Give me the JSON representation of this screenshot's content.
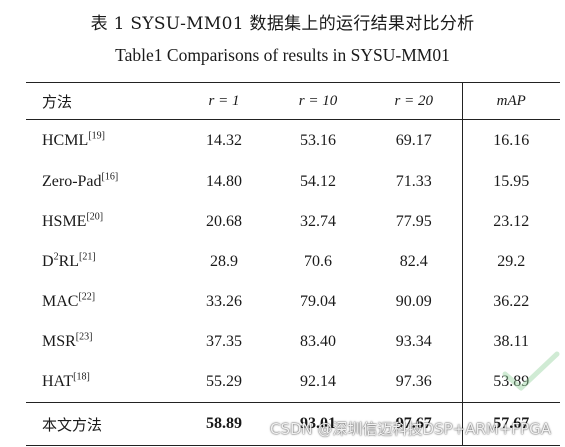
{
  "caption": {
    "zh": "表 1    SYSU-MM01 数据集上的运行结果对比分析",
    "en": "Table1 Comparisons of results in SYSU-MM01"
  },
  "table": {
    "headers": [
      "方法",
      "r = 1",
      "r = 10",
      "r = 20",
      "mAP"
    ],
    "rows": [
      {
        "method": "HCML",
        "method_sup": "",
        "ref": "[19]",
        "values": [
          "14.32",
          "53.16",
          "69.17",
          "16.16"
        ]
      },
      {
        "method": "Zero-Pad",
        "method_sup": "",
        "ref": "[16]",
        "values": [
          "14.80",
          "54.12",
          "71.33",
          "15.95"
        ]
      },
      {
        "method": "HSME",
        "method_sup": "",
        "ref": "[20]",
        "values": [
          "20.68",
          "32.74",
          "77.95",
          "23.12"
        ]
      },
      {
        "method": "D",
        "method_sup": "2",
        "method_rest": "RL",
        "ref": "[21]",
        "values": [
          "28.9",
          "70.6",
          "82.4",
          "29.2"
        ]
      },
      {
        "method": "MAC",
        "method_sup": "",
        "ref": "[22]",
        "values": [
          "33.26",
          "79.04",
          "90.09",
          "36.22"
        ]
      },
      {
        "method": "MSR",
        "method_sup": "",
        "ref": "[23]",
        "values": [
          "37.35",
          "83.40",
          "93.34",
          "38.11"
        ]
      },
      {
        "method": "HAT",
        "method_sup": "",
        "ref": "[18]",
        "values": [
          "55.29",
          "92.14",
          "97.36",
          "53.89"
        ]
      }
    ],
    "ours": {
      "method": "本文方法",
      "values": [
        "58.89",
        "93.01",
        "97.67",
        "57.67"
      ]
    }
  },
  "watermark": "CSDN @深圳信迈科技DSP+ARM+FPGA"
}
